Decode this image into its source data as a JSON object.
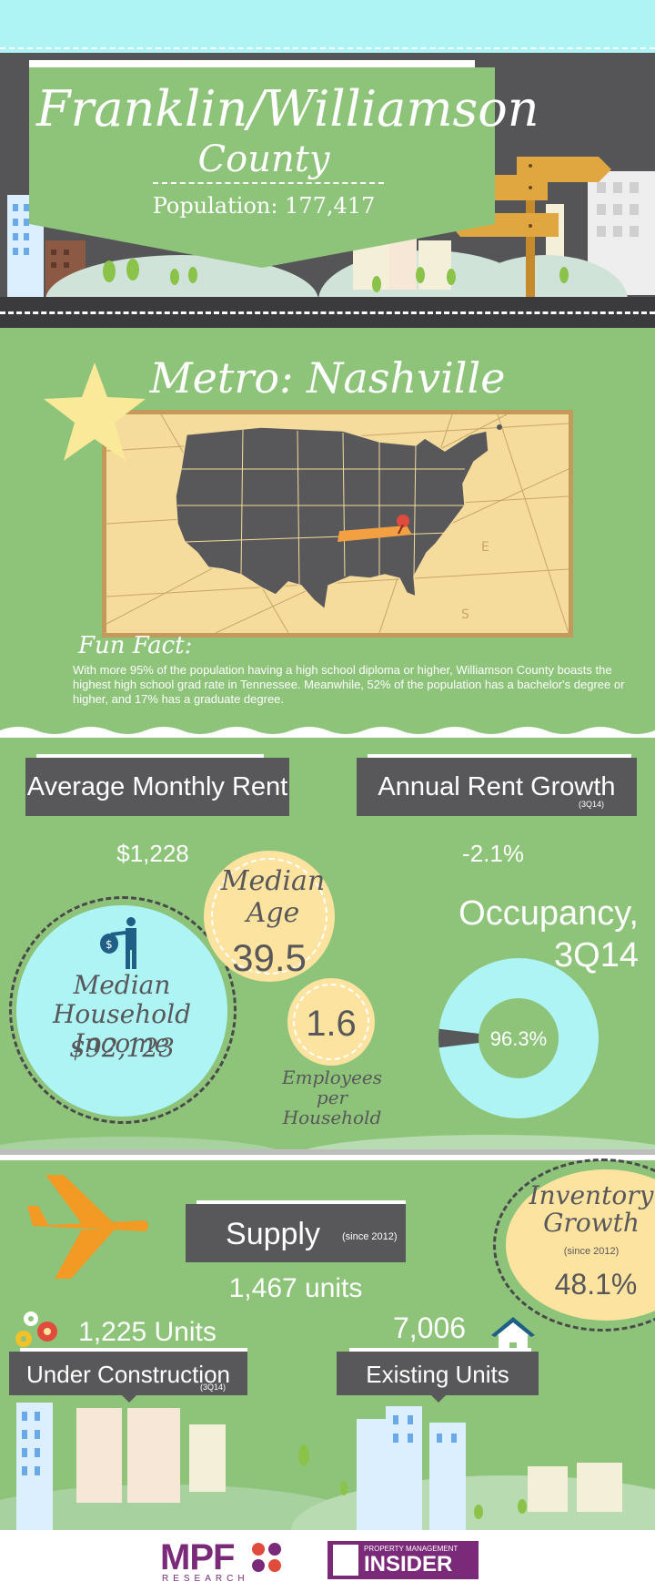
{
  "header": {
    "title_line1": "Franklin/Williamson",
    "title_line2": "County",
    "population": "Population: 177,417"
  },
  "metro": {
    "title": "Metro: Nashville",
    "fun_fact_title": "Fun Fact:",
    "fun_fact_text": "With more 95% of the population having a high school diploma or higher, Williamson County boasts the highest high school grad rate in Tennessee. Meanwhile, 52% of the population has a bachelor's degree or higher, and 17% has a graduate degree.",
    "compass_letters": [
      "E",
      "S"
    ]
  },
  "rent": {
    "avg_label": "Average Monthly Rent",
    "avg_value": "$1,228",
    "growth_label": "Annual Rent Growth",
    "growth_note": "(3Q14)",
    "growth_value": "-2.1%"
  },
  "demographics": {
    "median_age_label": "Median Age",
    "median_age_value": "39.5",
    "employees_value": "1.6",
    "employees_label_1": "Employees per",
    "employees_label_2": "Household",
    "income_label_1": "Median Household",
    "income_label_2": "Income",
    "income_value": "$92,123"
  },
  "occupancy": {
    "title_1": "Occupancy,",
    "title_2": "3Q14",
    "value_text": "96.3%",
    "fraction": 0.963
  },
  "supply": {
    "label": "Supply",
    "note": "(since 2012)",
    "value": "1,467 units",
    "inventory_label_1": "Inventory",
    "inventory_label_2": "Growth",
    "inventory_note": "(since 2012)",
    "inventory_value": "48.1%",
    "construction_value": "1,225 Units",
    "construction_label": "Under Construction",
    "construction_note": "(3Q14)",
    "existing_value": "7,006",
    "existing_label": "Existing Units"
  },
  "footer": {
    "logo1_main": "MPF",
    "logo1_sub": "RESEARCH",
    "logo2_top": "PROPERTY MANAGEMENT",
    "logo2_main": "INSIDER"
  },
  "colors": {
    "green": "#8dc47a",
    "dark": "#58585a",
    "sky": "#aef4f4",
    "yellow": "#fde3a0",
    "cyan": "#aef4f4",
    "orange": "#f39a25",
    "purple": "#7a2a78"
  },
  "icons": [
    "star-icon",
    "signpost-icon",
    "money-man-icon",
    "airplane-icon",
    "gears-icon",
    "house-icon",
    "map-pin-icon"
  ]
}
